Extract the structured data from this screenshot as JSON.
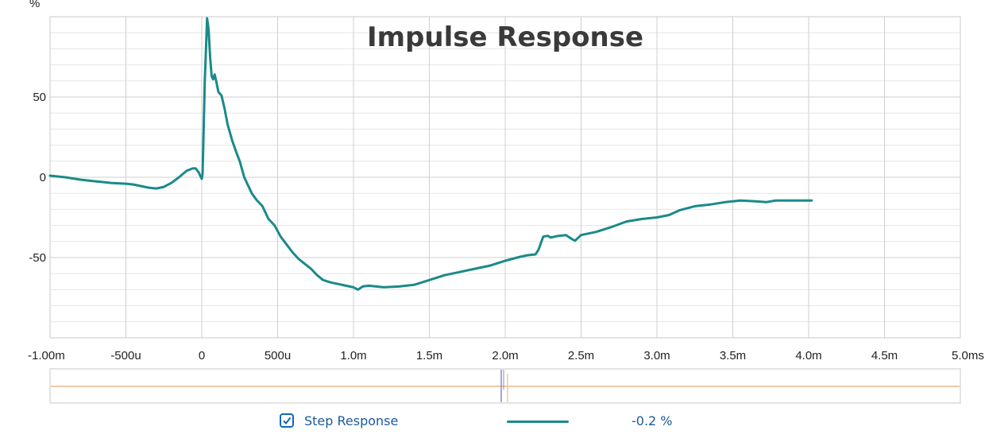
{
  "chart_data": {
    "type": "line",
    "title": "Impulse Response",
    "ylabel": "%",
    "xlabel": "",
    "xlim": [
      -1.0,
      5.0
    ],
    "ylim": [
      -100,
      100
    ],
    "x_unit": "ms",
    "x_ticks": [
      {
        "v": -1.0,
        "label": "-1.00m"
      },
      {
        "v": -0.5,
        "label": "-500u"
      },
      {
        "v": 0.0,
        "label": "0"
      },
      {
        "v": 0.5,
        "label": "500u"
      },
      {
        "v": 1.0,
        "label": "1.0m"
      },
      {
        "v": 1.5,
        "label": "1.5m"
      },
      {
        "v": 2.0,
        "label": "2.0m"
      },
      {
        "v": 2.5,
        "label": "2.5m"
      },
      {
        "v": 3.0,
        "label": "3.0m"
      },
      {
        "v": 3.5,
        "label": "3.5m"
      },
      {
        "v": 4.0,
        "label": "4.0m"
      },
      {
        "v": 4.5,
        "label": "4.5m"
      },
      {
        "v": 5.0,
        "label": "5.0ms"
      }
    ],
    "y_ticks": [
      {
        "v": 50,
        "label": "50"
      },
      {
        "v": 0,
        "label": "0"
      },
      {
        "v": -50,
        "label": "-50"
      }
    ],
    "grid": true,
    "series": [
      {
        "name": "Step Response",
        "color": "#1a8a8a",
        "points": [
          [
            -1.0,
            1
          ],
          [
            -0.9,
            0
          ],
          [
            -0.8,
            -1.5
          ],
          [
            -0.7,
            -2.5
          ],
          [
            -0.6,
            -3.5
          ],
          [
            -0.5,
            -4
          ],
          [
            -0.45,
            -4.5
          ],
          [
            -0.4,
            -5.5
          ],
          [
            -0.35,
            -6.5
          ],
          [
            -0.3,
            -7
          ],
          [
            -0.25,
            -6
          ],
          [
            -0.2,
            -3.5
          ],
          [
            -0.15,
            0
          ],
          [
            -0.1,
            4
          ],
          [
            -0.06,
            5.5
          ],
          [
            -0.04,
            5.5
          ],
          [
            -0.02,
            3
          ],
          [
            -0.01,
            1
          ],
          [
            0.0,
            -1
          ],
          [
            0.005,
            2
          ],
          [
            0.01,
            20
          ],
          [
            0.02,
            60
          ],
          [
            0.03,
            85
          ],
          [
            0.035,
            99
          ],
          [
            0.045,
            92
          ],
          [
            0.055,
            75
          ],
          [
            0.065,
            63
          ],
          [
            0.075,
            61
          ],
          [
            0.085,
            64
          ],
          [
            0.095,
            60
          ],
          [
            0.11,
            53
          ],
          [
            0.13,
            51
          ],
          [
            0.15,
            43
          ],
          [
            0.17,
            33
          ],
          [
            0.2,
            23
          ],
          [
            0.23,
            15
          ],
          [
            0.25,
            10
          ],
          [
            0.28,
            0
          ],
          [
            0.3,
            -4
          ],
          [
            0.33,
            -10
          ],
          [
            0.36,
            -14
          ],
          [
            0.4,
            -18
          ],
          [
            0.44,
            -26
          ],
          [
            0.48,
            -30
          ],
          [
            0.52,
            -37
          ],
          [
            0.56,
            -42
          ],
          [
            0.6,
            -47
          ],
          [
            0.64,
            -51
          ],
          [
            0.68,
            -54
          ],
          [
            0.72,
            -57
          ],
          [
            0.76,
            -61
          ],
          [
            0.8,
            -64
          ],
          [
            0.85,
            -65.5
          ],
          [
            0.9,
            -66.5
          ],
          [
            0.95,
            -67.5
          ],
          [
            1.0,
            -68.5
          ],
          [
            1.03,
            -70
          ],
          [
            1.06,
            -68
          ],
          [
            1.1,
            -67.5
          ],
          [
            1.15,
            -68
          ],
          [
            1.2,
            -68.5
          ],
          [
            1.3,
            -68
          ],
          [
            1.4,
            -67
          ],
          [
            1.5,
            -64
          ],
          [
            1.6,
            -61
          ],
          [
            1.7,
            -59
          ],
          [
            1.8,
            -57
          ],
          [
            1.9,
            -55
          ],
          [
            2.0,
            -52
          ],
          [
            2.1,
            -49.5
          ],
          [
            2.15,
            -48.5
          ],
          [
            2.2,
            -48
          ],
          [
            2.22,
            -45
          ],
          [
            2.25,
            -37
          ],
          [
            2.28,
            -36.5
          ],
          [
            2.3,
            -37.5
          ],
          [
            2.35,
            -36.5
          ],
          [
            2.4,
            -36
          ],
          [
            2.44,
            -38.5
          ],
          [
            2.46,
            -39.5
          ],
          [
            2.5,
            -36
          ],
          [
            2.6,
            -34
          ],
          [
            2.7,
            -31
          ],
          [
            2.8,
            -27.5
          ],
          [
            2.9,
            -26
          ],
          [
            3.0,
            -25
          ],
          [
            3.08,
            -23.5
          ],
          [
            3.15,
            -20.5
          ],
          [
            3.25,
            -18
          ],
          [
            3.35,
            -17
          ],
          [
            3.45,
            -15.5
          ],
          [
            3.55,
            -14.5
          ],
          [
            3.65,
            -15
          ],
          [
            3.72,
            -15.5
          ],
          [
            3.78,
            -14.5
          ],
          [
            3.9,
            -14.5
          ],
          [
            4.02,
            -14.5
          ]
        ]
      }
    ],
    "overview": {
      "marker_color": "#8888cc",
      "baseline_color": "#f0c8a8"
    }
  },
  "legend": {
    "checked": true,
    "label": "Step Response",
    "value": "-0.2 %",
    "color": "#1a8a8a"
  }
}
